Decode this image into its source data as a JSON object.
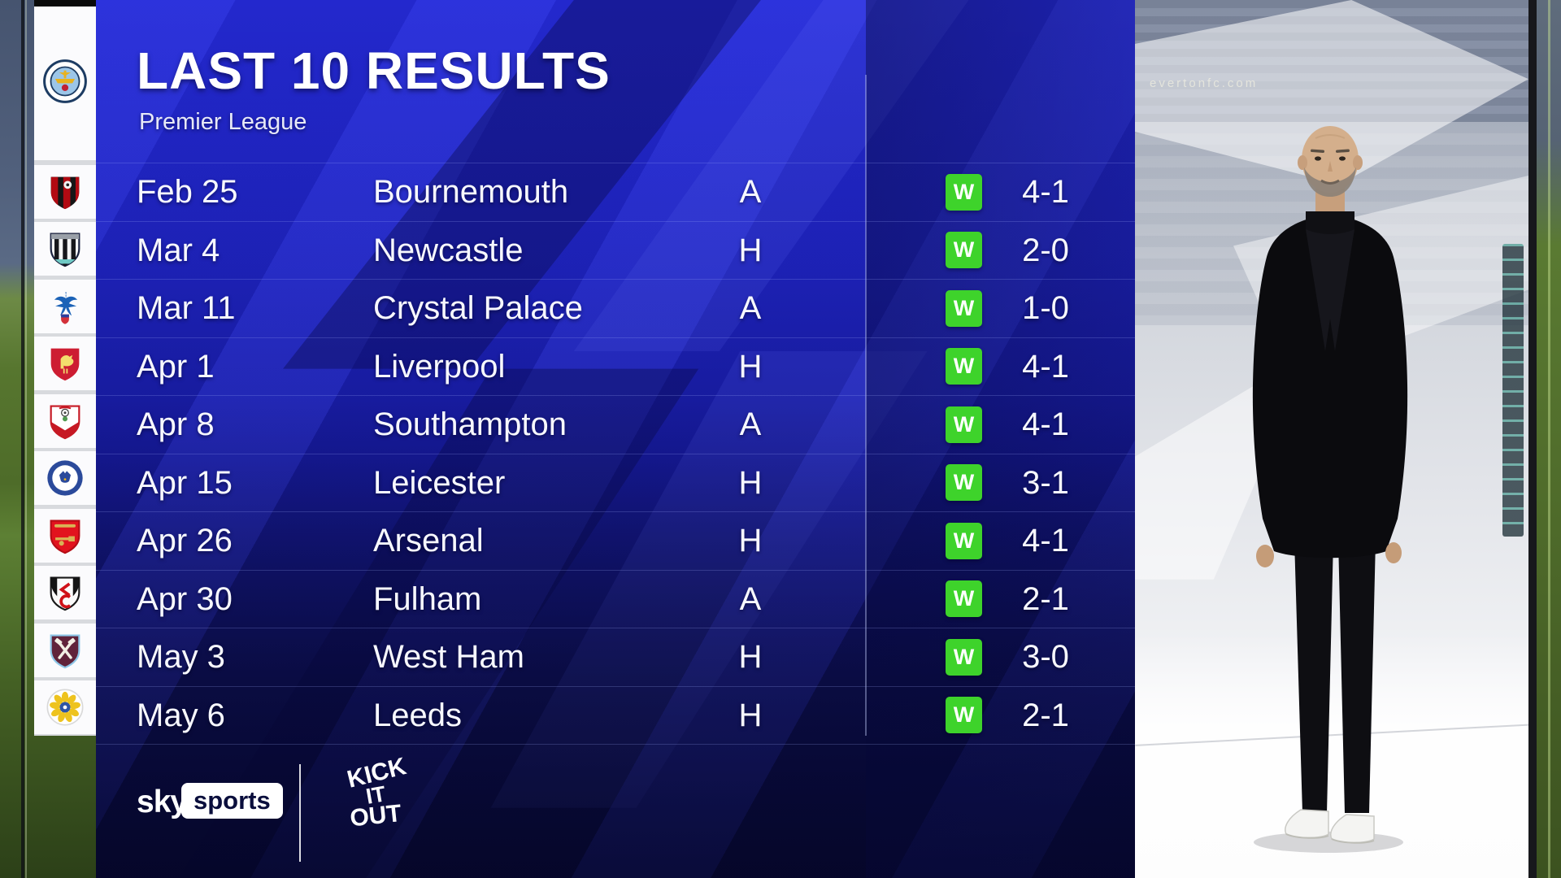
{
  "header": {
    "title": "LAST 10 RESULTS",
    "subtitle": "Premier League"
  },
  "club": {
    "name": "Manchester City",
    "crest": "manchester-city-crest"
  },
  "results": [
    {
      "date": "Feb 25",
      "opponent": "Bournemouth",
      "venue": "A",
      "result": "W",
      "score": "4-1",
      "crest": "bournemouth-crest"
    },
    {
      "date": "Mar 4",
      "opponent": "Newcastle",
      "venue": "H",
      "result": "W",
      "score": "2-0",
      "crest": "newcastle-crest"
    },
    {
      "date": "Mar 11",
      "opponent": "Crystal Palace",
      "venue": "A",
      "result": "W",
      "score": "1-0",
      "crest": "crystal-palace-crest"
    },
    {
      "date": "Apr 1",
      "opponent": "Liverpool",
      "venue": "H",
      "result": "W",
      "score": "4-1",
      "crest": "liverpool-crest"
    },
    {
      "date": "Apr 8",
      "opponent": "Southampton",
      "venue": "A",
      "result": "W",
      "score": "4-1",
      "crest": "southampton-crest"
    },
    {
      "date": "Apr 15",
      "opponent": "Leicester",
      "venue": "H",
      "result": "W",
      "score": "3-1",
      "crest": "leicester-crest"
    },
    {
      "date": "Apr 26",
      "opponent": "Arsenal",
      "venue": "H",
      "result": "W",
      "score": "4-1",
      "crest": "arsenal-crest"
    },
    {
      "date": "Apr 30",
      "opponent": "Fulham",
      "venue": "A",
      "result": "W",
      "score": "2-1",
      "crest": "fulham-crest"
    },
    {
      "date": "May 3",
      "opponent": "West Ham",
      "venue": "H",
      "result": "W",
      "score": "3-0",
      "crest": "west-ham-crest"
    },
    {
      "date": "May 6",
      "opponent": "Leeds",
      "venue": "H",
      "result": "W",
      "score": "2-1",
      "crest": "leeds-crest"
    }
  ],
  "footer": {
    "sky": "sky",
    "sports": "sports",
    "kick_it_out": {
      "line1": "KICK",
      "line2": "IT",
      "line3": "OUT"
    }
  },
  "right_panel": {
    "banner_text": "evertonfc.com"
  },
  "colors": {
    "win_green": "#3ed32b",
    "panel_blue": "#1d21b6",
    "dark_navy": "#0b0d3f",
    "white": "#ffffff",
    "sports_box_text": "#0a0e3c"
  }
}
